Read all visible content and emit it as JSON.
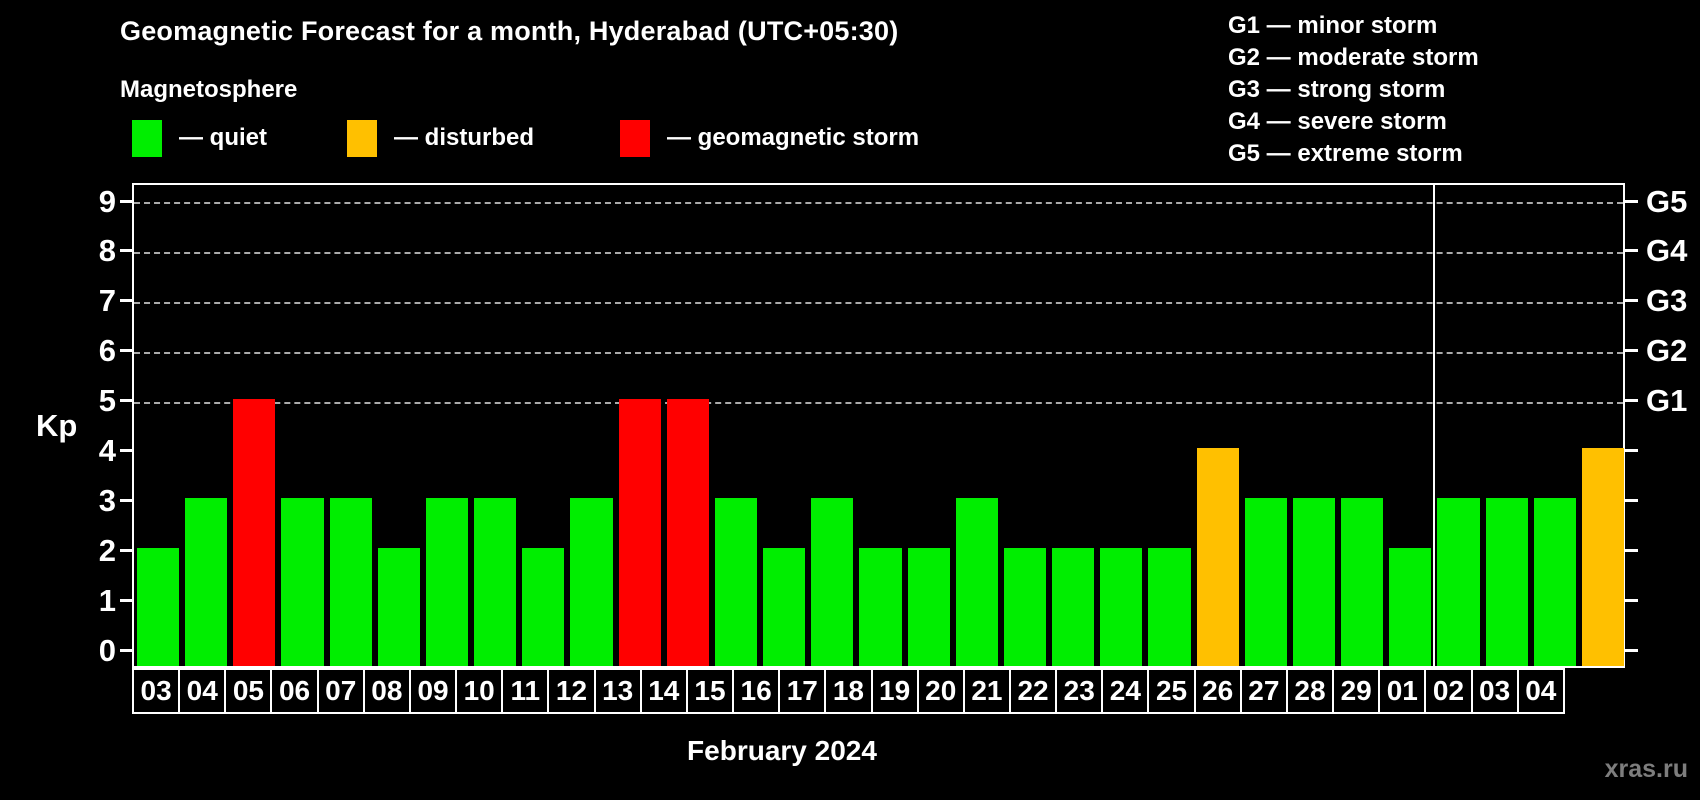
{
  "title": "Geomagnetic Forecast for a month, Hyderabad (UTC+05:30)",
  "subtitle": "Magnetosphere",
  "legend": {
    "quiet_label": "— quiet",
    "disturbed_label": "— disturbed",
    "storm_label": "— geomagnetic storm"
  },
  "g_scale": [
    "G1 — minor storm",
    "G2 — moderate storm",
    "G3 — strong storm",
    "G4 — severe storm",
    "G5 — extreme storm"
  ],
  "axis": {
    "y_label": "Kp",
    "y_ticks": [
      0,
      1,
      2,
      3,
      4,
      5,
      6,
      7,
      8,
      9
    ],
    "right_axis_labels": {
      "5": "G1",
      "6": "G2",
      "7": "G3",
      "8": "G4",
      "9": "G5"
    }
  },
  "x_label": "February 2024",
  "watermark": "xras.ru",
  "colors": {
    "quiet": "#00ee00",
    "disturbed": "#ffc000",
    "storm": "#ff0000",
    "grid": "#aaaaaa",
    "axis": "#ffffff",
    "watermark": "#7d7d7d",
    "background": "#000000"
  },
  "chart_data": {
    "type": "bar",
    "title": "Geomagnetic Forecast for a month, Hyderabad (UTC+05:30)",
    "xlabel": "February 2024",
    "ylabel": "Kp",
    "ylim": [
      0,
      9
    ],
    "grid_levels": [
      5,
      6,
      7,
      8,
      9
    ],
    "legend_position": "top",
    "categories": [
      "03",
      "04",
      "05",
      "06",
      "07",
      "08",
      "09",
      "10",
      "11",
      "12",
      "13",
      "14",
      "15",
      "16",
      "17",
      "18",
      "19",
      "20",
      "21",
      "22",
      "23",
      "24",
      "25",
      "26",
      "27",
      "28",
      "29",
      "01",
      "02",
      "03",
      "04"
    ],
    "values": [
      2,
      3,
      5,
      3,
      3,
      2,
      3,
      3,
      2,
      3,
      5,
      5,
      3,
      2,
      3,
      2,
      2,
      3,
      2,
      2,
      2,
      2,
      4,
      3,
      3,
      3,
      2,
      3,
      3,
      3,
      4
    ],
    "statuses": [
      "quiet",
      "quiet",
      "storm",
      "quiet",
      "quiet",
      "quiet",
      "quiet",
      "quiet",
      "quiet",
      "quiet",
      "storm",
      "storm",
      "quiet",
      "quiet",
      "quiet",
      "quiet",
      "quiet",
      "quiet",
      "quiet",
      "quiet",
      "quiet",
      "quiet",
      "disturbed",
      "quiet",
      "quiet",
      "quiet",
      "quiet",
      "quiet",
      "quiet",
      "quiet",
      "disturbed"
    ],
    "month_boundary_index": 27
  }
}
